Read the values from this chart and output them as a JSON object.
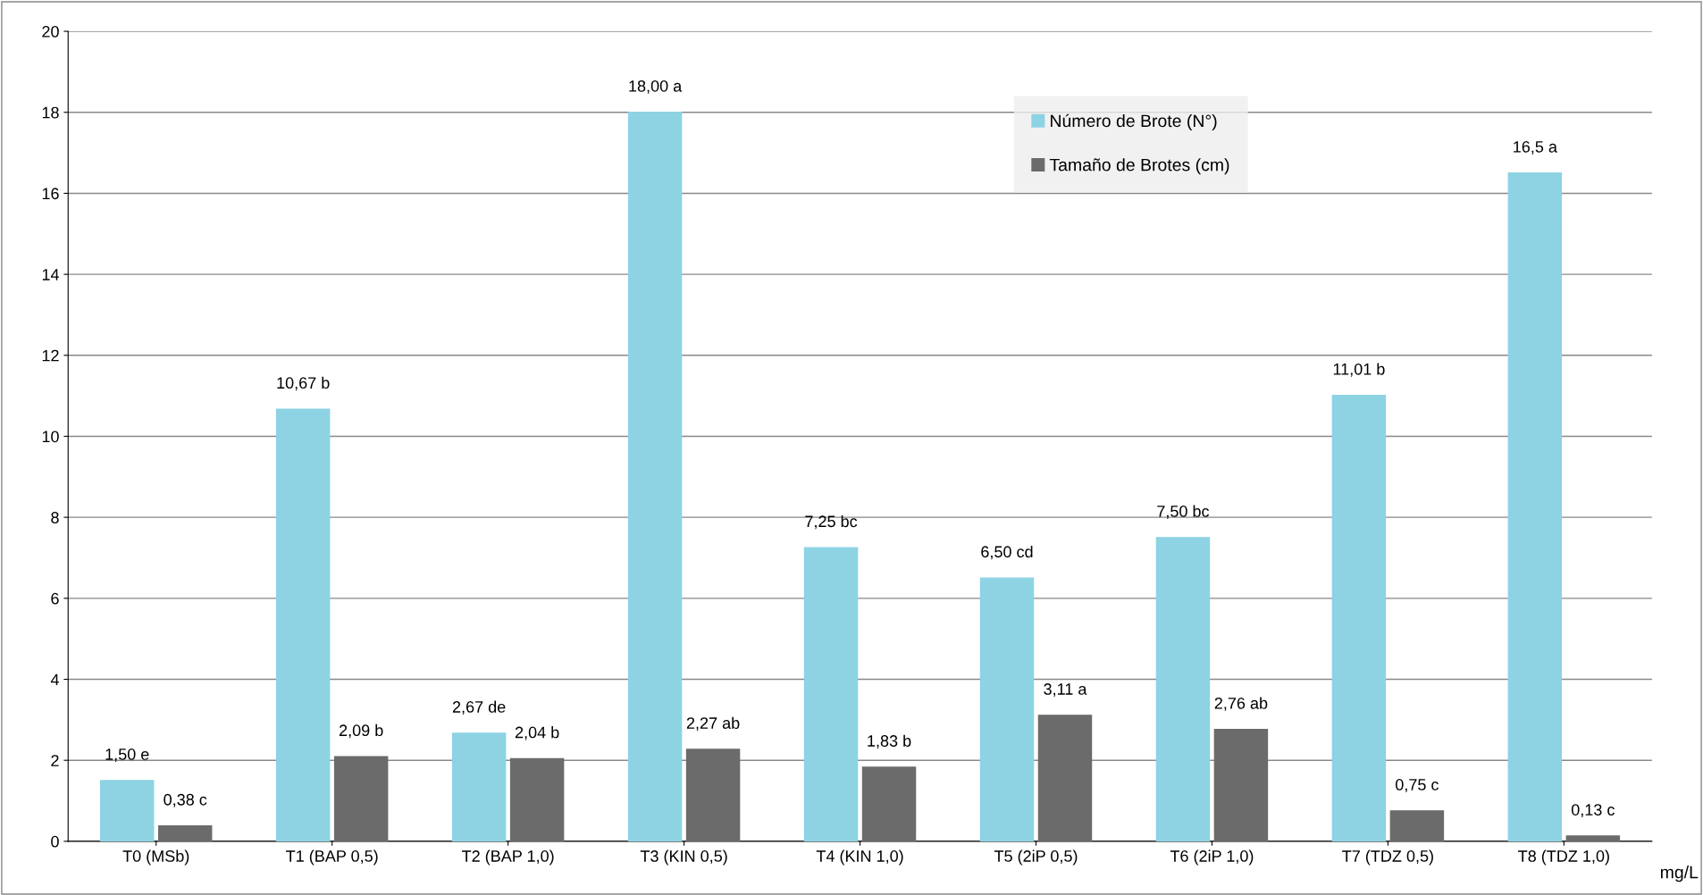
{
  "chart_data": {
    "type": "bar",
    "categories": [
      "T0 (MSb)",
      "T1 (BAP 0,5)",
      "T2 (BAP 1,0)",
      "T3 (KIN 0,5)",
      "T4 (KIN 1,0)",
      "T5 (2iP 0,5)",
      "T6 (2iP 1,0)",
      "T7 (TDZ 0,5)",
      "T8 (TDZ 1,0)"
    ],
    "series": [
      {
        "name": "Número de Brote (N°)",
        "color": "#8dd3e3",
        "values": [
          1.5,
          10.67,
          2.67,
          18.0,
          7.25,
          6.5,
          7.5,
          11.01,
          16.5
        ],
        "value_labels": [
          "1,50 e",
          "10,67 b",
          "2,67 de",
          "18,00 a",
          "7,25 bc",
          "6,50 cd",
          "7,50 bc",
          "11,01 b",
          "16,5 a"
        ]
      },
      {
        "name": "Tamaño de Brotes (cm)",
        "color": "#6b6b6b",
        "values": [
          0.38,
          2.09,
          2.04,
          2.27,
          1.83,
          3.11,
          2.76,
          0.75,
          0.13
        ],
        "value_labels": [
          "0,38 c",
          "2,09 b",
          "2,04 b",
          "2,27 ab",
          "1,83 b",
          "3,11 a",
          "2,76 ab",
          "0,75 c",
          "0,13 c"
        ]
      }
    ],
    "xlabel": "mg/L",
    "ylim": [
      0,
      20
    ],
    "yticks": [
      0,
      2,
      4,
      6,
      8,
      10,
      12,
      14,
      16,
      18,
      20
    ],
    "grid": "y",
    "legend": "top right"
  }
}
